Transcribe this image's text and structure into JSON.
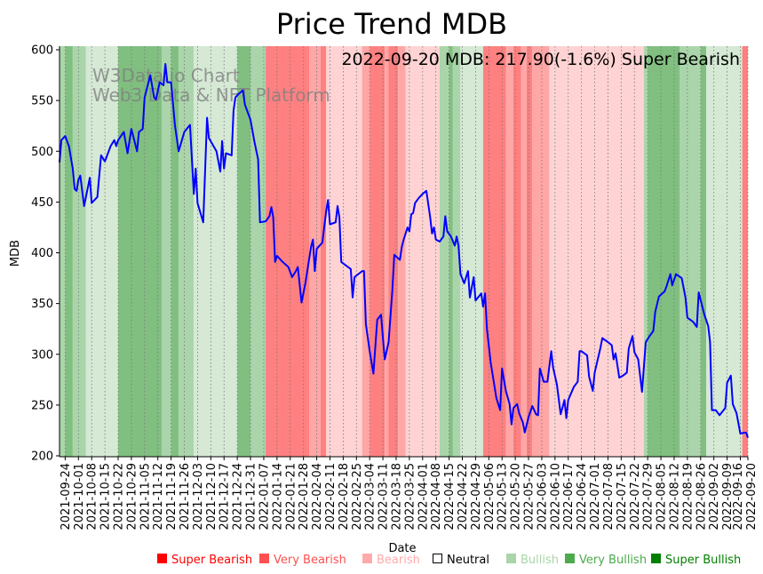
{
  "chart_data": {
    "type": "line",
    "title": "Price Trend MDB",
    "xlabel": "Date",
    "ylabel": "MDB",
    "annotation": "2022-09-20 MDB: 217.90(-1.6%) Super Bearish",
    "watermark": [
      "W3Data.io Chart",
      "Web3 Data & NFT Platform"
    ],
    "x_unit": "days since 2021-09-21",
    "xlim": [
      0,
      364
    ],
    "ylim": [
      200,
      600
    ],
    "y_ticks": [
      200,
      250,
      300,
      350,
      400,
      450,
      500,
      550,
      600
    ],
    "x_ticks": [
      {
        "day": 3,
        "label": "2021-09-24"
      },
      {
        "day": 10,
        "label": "2021-10-01"
      },
      {
        "day": 17,
        "label": "2021-10-08"
      },
      {
        "day": 24,
        "label": "2021-10-15"
      },
      {
        "day": 31,
        "label": "2021-10-22"
      },
      {
        "day": 38,
        "label": "2021-10-29"
      },
      {
        "day": 45,
        "label": "2021-11-05"
      },
      {
        "day": 52,
        "label": "2021-11-12"
      },
      {
        "day": 59,
        "label": "2021-11-19"
      },
      {
        "day": 66,
        "label": "2021-11-26"
      },
      {
        "day": 73,
        "label": "2021-12-03"
      },
      {
        "day": 80,
        "label": "2021-12-10"
      },
      {
        "day": 87,
        "label": "2021-12-17"
      },
      {
        "day": 94,
        "label": "2021-12-24"
      },
      {
        "day": 101,
        "label": "2021-12-31"
      },
      {
        "day": 108,
        "label": "2022-01-07"
      },
      {
        "day": 115,
        "label": "2022-01-14"
      },
      {
        "day": 122,
        "label": "2022-01-21"
      },
      {
        "day": 129,
        "label": "2022-01-28"
      },
      {
        "day": 136,
        "label": "2022-02-04"
      },
      {
        "day": 143,
        "label": "2022-02-11"
      },
      {
        "day": 150,
        "label": "2022-02-18"
      },
      {
        "day": 157,
        "label": "2022-02-25"
      },
      {
        "day": 164,
        "label": "2022-03-04"
      },
      {
        "day": 171,
        "label": "2022-03-11"
      },
      {
        "day": 178,
        "label": "2022-03-18"
      },
      {
        "day": 185,
        "label": "2022-03-25"
      },
      {
        "day": 192,
        "label": "2022-04-01"
      },
      {
        "day": 199,
        "label": "2022-04-08"
      },
      {
        "day": 206,
        "label": "2022-04-15"
      },
      {
        "day": 213,
        "label": "2022-04-22"
      },
      {
        "day": 220,
        "label": "2022-04-29"
      },
      {
        "day": 227,
        "label": "2022-05-06"
      },
      {
        "day": 234,
        "label": "2022-05-13"
      },
      {
        "day": 241,
        "label": "2022-05-20"
      },
      {
        "day": 248,
        "label": "2022-05-27"
      },
      {
        "day": 255,
        "label": "2022-06-03"
      },
      {
        "day": 262,
        "label": "2022-06-10"
      },
      {
        "day": 269,
        "label": "2022-06-17"
      },
      {
        "day": 276,
        "label": "2022-06-24"
      },
      {
        "day": 283,
        "label": "2022-07-01"
      },
      {
        "day": 290,
        "label": "2022-07-08"
      },
      {
        "day": 297,
        "label": "2022-07-15"
      },
      {
        "day": 304,
        "label": "2022-07-22"
      },
      {
        "day": 311,
        "label": "2022-07-29"
      },
      {
        "day": 318,
        "label": "2022-08-05"
      },
      {
        "day": 325,
        "label": "2022-08-12"
      },
      {
        "day": 332,
        "label": "2022-08-19"
      },
      {
        "day": 339,
        "label": "2022-08-26"
      },
      {
        "day": 346,
        "label": "2022-09-02"
      },
      {
        "day": 353,
        "label": "2022-09-09"
      },
      {
        "day": 360,
        "label": "2022-09-16"
      },
      {
        "day": 364,
        "label": "2022-09-20"
      }
    ],
    "sentiment_colors": {
      "super_bearish": "#ff8080",
      "very_bearish": "#ffa6a6",
      "bearish": "#ffd3d3",
      "neutral": "#ffffff",
      "bullish": "#d5e9d5",
      "very_bullish": "#aad5aa",
      "super_bullish": "#80bf80"
    },
    "legend": [
      {
        "key": "super_bearish",
        "label": "Super Bearish",
        "color": "#ff0000",
        "swatch": "#ff0000"
      },
      {
        "key": "very_bearish",
        "label": "Very Bearish",
        "color": "#ff5050",
        "swatch": "#ff5050"
      },
      {
        "key": "bearish",
        "label": "Bearish",
        "color": "#ffaaaa",
        "swatch": "#ffaaaa"
      },
      {
        "key": "neutral",
        "label": "Neutral",
        "color": "#000000",
        "swatch": "none"
      },
      {
        "key": "bullish",
        "label": "Bullish",
        "color": "#a9d5a9",
        "swatch": "#a9d5a9"
      },
      {
        "key": "very_bullish",
        "label": "Very Bullish",
        "color": "#4daa4d",
        "swatch": "#4daa4d"
      },
      {
        "key": "super_bullish",
        "label": "Super Bullish",
        "color": "#008000",
        "swatch": "#008000"
      }
    ],
    "bands": [
      [
        0,
        3,
        "very_bullish"
      ],
      [
        3,
        7,
        "super_bullish"
      ],
      [
        7,
        14,
        "very_bullish"
      ],
      [
        14,
        31,
        "bullish"
      ],
      [
        31,
        54,
        "super_bullish"
      ],
      [
        54,
        59,
        "very_bullish"
      ],
      [
        59,
        63,
        "super_bullish"
      ],
      [
        63,
        71,
        "very_bullish"
      ],
      [
        71,
        94,
        "bullish"
      ],
      [
        94,
        101,
        "super_bullish"
      ],
      [
        101,
        109,
        "very_bullish"
      ],
      [
        109,
        132,
        "super_bearish"
      ],
      [
        132,
        138,
        "very_bearish"
      ],
      [
        138,
        141,
        "super_bearish"
      ],
      [
        141,
        160,
        "bearish"
      ],
      [
        160,
        164,
        "very_bearish"
      ],
      [
        164,
        172,
        "super_bearish"
      ],
      [
        172,
        174,
        "very_bearish"
      ],
      [
        174,
        179,
        "super_bearish"
      ],
      [
        179,
        183,
        "very_bearish"
      ],
      [
        183,
        201,
        "bearish"
      ],
      [
        201,
        206,
        "very_bullish"
      ],
      [
        206,
        208,
        "super_bullish"
      ],
      [
        208,
        212,
        "very_bullish"
      ],
      [
        212,
        224,
        "bullish"
      ],
      [
        224,
        236,
        "super_bearish"
      ],
      [
        236,
        240,
        "very_bearish"
      ],
      [
        240,
        244,
        "super_bearish"
      ],
      [
        244,
        247,
        "very_bearish"
      ],
      [
        247,
        250,
        "super_bearish"
      ],
      [
        250,
        259,
        "very_bearish"
      ],
      [
        259,
        309,
        "bearish"
      ],
      [
        309,
        311,
        "very_bullish"
      ],
      [
        311,
        328,
        "super_bullish"
      ],
      [
        328,
        339,
        "very_bullish"
      ],
      [
        339,
        342,
        "super_bullish"
      ],
      [
        342,
        361,
        "bullish"
      ],
      [
        361,
        364,
        "super_bearish"
      ]
    ],
    "line_color": "#0000ff",
    "series": [
      {
        "name": "MDB",
        "points": [
          [
            0,
            489
          ],
          [
            1,
            511
          ],
          [
            3,
            515
          ],
          [
            5,
            505
          ],
          [
            7,
            483
          ],
          [
            8,
            463
          ],
          [
            9,
            461
          ],
          [
            10,
            472
          ],
          [
            11,
            476
          ],
          [
            13,
            446
          ],
          [
            16,
            474
          ],
          [
            17,
            449
          ],
          [
            20,
            455
          ],
          [
            22,
            496
          ],
          [
            24,
            490
          ],
          [
            27,
            505
          ],
          [
            29,
            511
          ],
          [
            30,
            505
          ],
          [
            31,
            511
          ],
          [
            34,
            519
          ],
          [
            36,
            498
          ],
          [
            38,
            522
          ],
          [
            41,
            500
          ],
          [
            42,
            519
          ],
          [
            44,
            522
          ],
          [
            45,
            553
          ],
          [
            48,
            575
          ],
          [
            50,
            553
          ],
          [
            51,
            551
          ],
          [
            53,
            568
          ],
          [
            55,
            565
          ],
          [
            56,
            586
          ],
          [
            57,
            568
          ],
          [
            59,
            568
          ],
          [
            61,
            526
          ],
          [
            63,
            500
          ],
          [
            66,
            519
          ],
          [
            69,
            526
          ],
          [
            71,
            458
          ],
          [
            72,
            483
          ],
          [
            73,
            449
          ],
          [
            76,
            430
          ],
          [
            78,
            533
          ],
          [
            79,
            513
          ],
          [
            83,
            500
          ],
          [
            85,
            480
          ],
          [
            86,
            510
          ],
          [
            87,
            483
          ],
          [
            88,
            498
          ],
          [
            91,
            496
          ],
          [
            92,
            540
          ],
          [
            93,
            553
          ],
          [
            95,
            557
          ],
          [
            97,
            560
          ],
          [
            98,
            546
          ],
          [
            101,
            531
          ],
          [
            103,
            510
          ],
          [
            105,
            492
          ],
          [
            106,
            430
          ],
          [
            109,
            431
          ],
          [
            111,
            436
          ],
          [
            112,
            445
          ],
          [
            113,
            435
          ],
          [
            114,
            391
          ],
          [
            115,
            397
          ],
          [
            118,
            391
          ],
          [
            121,
            386
          ],
          [
            123,
            376
          ],
          [
            125,
            382
          ],
          [
            126,
            386
          ],
          [
            128,
            351
          ],
          [
            130,
            370
          ],
          [
            133,
            406
          ],
          [
            134,
            413
          ],
          [
            135,
            382
          ],
          [
            136,
            404
          ],
          [
            139,
            410
          ],
          [
            141,
            441
          ],
          [
            142,
            452
          ],
          [
            143,
            428
          ],
          [
            146,
            430
          ],
          [
            147,
            446
          ],
          [
            148,
            435
          ],
          [
            149,
            391
          ],
          [
            154,
            384
          ],
          [
            155,
            356
          ],
          [
            156,
            376
          ],
          [
            160,
            382
          ],
          [
            161,
            382
          ],
          [
            162,
            330
          ],
          [
            164,
            303
          ],
          [
            166,
            281
          ],
          [
            168,
            334
          ],
          [
            170,
            339
          ],
          [
            171,
            316
          ],
          [
            172,
            295
          ],
          [
            174,
            312
          ],
          [
            176,
            363
          ],
          [
            177,
            398
          ],
          [
            180,
            393
          ],
          [
            181,
            406
          ],
          [
            182,
            413
          ],
          [
            184,
            425
          ],
          [
            185,
            421
          ],
          [
            186,
            438
          ],
          [
            187,
            439
          ],
          [
            188,
            449
          ],
          [
            190,
            454
          ],
          [
            192,
            458
          ],
          [
            194,
            461
          ],
          [
            196,
            435
          ],
          [
            197,
            419
          ],
          [
            198,
            425
          ],
          [
            199,
            413
          ],
          [
            201,
            411
          ],
          [
            203,
            416
          ],
          [
            204,
            436
          ],
          [
            205,
            421
          ],
          [
            207,
            416
          ],
          [
            209,
            407
          ],
          [
            210,
            416
          ],
          [
            211,
            407
          ],
          [
            212,
            379
          ],
          [
            214,
            370
          ],
          [
            216,
            382
          ],
          [
            217,
            356
          ],
          [
            219,
            376
          ],
          [
            220,
            353
          ],
          [
            223,
            360
          ],
          [
            224,
            347
          ],
          [
            225,
            360
          ],
          [
            226,
            325
          ],
          [
            228,
            292
          ],
          [
            231,
            257
          ],
          [
            233,
            245
          ],
          [
            234,
            286
          ],
          [
            236,
            264
          ],
          [
            238,
            251
          ],
          [
            239,
            231
          ],
          [
            240,
            247
          ],
          [
            242,
            251
          ],
          [
            243,
            242
          ],
          [
            245,
            233
          ],
          [
            246,
            223
          ],
          [
            248,
            238
          ],
          [
            250,
            249
          ],
          [
            252,
            241
          ],
          [
            253,
            240
          ],
          [
            254,
            286
          ],
          [
            256,
            273
          ],
          [
            258,
            273
          ],
          [
            260,
            303
          ],
          [
            261,
            287
          ],
          [
            263,
            270
          ],
          [
            265,
            241
          ],
          [
            267,
            255
          ],
          [
            268,
            237
          ],
          [
            269,
            255
          ],
          [
            272,
            268
          ],
          [
            274,
            273
          ],
          [
            275,
            303
          ],
          [
            276,
            303
          ],
          [
            279,
            299
          ],
          [
            280,
            278
          ],
          [
            282,
            264
          ],
          [
            283,
            282
          ],
          [
            286,
            306
          ],
          [
            287,
            316
          ],
          [
            290,
            312
          ],
          [
            292,
            309
          ],
          [
            293,
            295
          ],
          [
            294,
            301
          ],
          [
            296,
            277
          ],
          [
            298,
            279
          ],
          [
            300,
            282
          ],
          [
            301,
            306
          ],
          [
            303,
            318
          ],
          [
            304,
            302
          ],
          [
            306,
            295
          ],
          [
            308,
            263
          ],
          [
            310,
            312
          ],
          [
            312,
            318
          ],
          [
            314,
            323
          ],
          [
            315,
            342
          ],
          [
            317,
            357
          ],
          [
            320,
            362
          ],
          [
            321,
            367
          ],
          [
            323,
            379
          ],
          [
            324,
            368
          ],
          [
            326,
            379
          ],
          [
            329,
            375
          ],
          [
            331,
            356
          ],
          [
            332,
            336
          ],
          [
            335,
            332
          ],
          [
            337,
            327
          ],
          [
            338,
            361
          ],
          [
            341,
            339
          ],
          [
            343,
            328
          ],
          [
            344,
            312
          ],
          [
            345,
            245
          ],
          [
            347,
            245
          ],
          [
            349,
            240
          ],
          [
            352,
            247
          ],
          [
            353,
            272
          ],
          [
            355,
            279
          ],
          [
            356,
            251
          ],
          [
            358,
            242
          ],
          [
            360,
            222
          ],
          [
            363,
            223
          ],
          [
            364,
            217.9
          ]
        ]
      }
    ]
  }
}
